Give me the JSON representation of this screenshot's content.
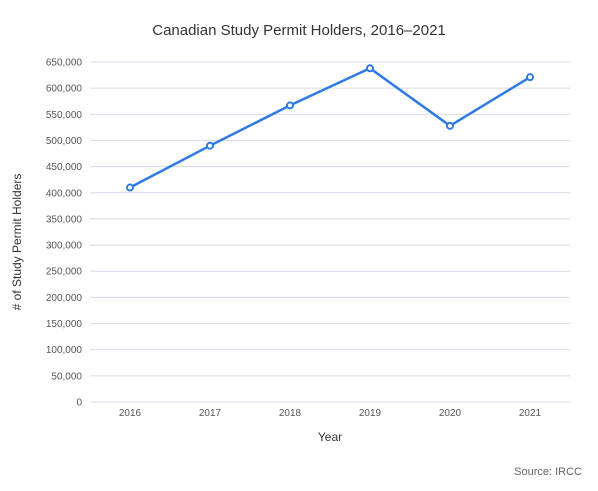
{
  "chart_data": {
    "type": "line",
    "title": "Canadian Study Permit Holders, 2016–2021",
    "xlabel": "Year",
    "ylabel": "# of Study Permit Holders",
    "categories": [
      "2016",
      "2017",
      "2018",
      "2019",
      "2020",
      "2021"
    ],
    "series": [
      {
        "values": [
          410000,
          490000,
          567000,
          638000,
          528000,
          621000
        ],
        "color": "#2f7ae5"
      }
    ],
    "ylim": [
      0,
      650000
    ],
    "yticks": [
      0,
      50000,
      100000,
      150000,
      200000,
      250000,
      300000,
      350000,
      400000,
      450000,
      500000,
      550000,
      600000,
      650000
    ],
    "ytick_labels": [
      "0",
      "50,000",
      "100,000",
      "150,000",
      "200,000",
      "250,000",
      "300,000",
      "350,000",
      "400,000",
      "450,000",
      "500,000",
      "550,000",
      "600,000",
      "650,000"
    ],
    "grid": true,
    "legend": "none",
    "gridline_color": "#d7dbe8",
    "markers": "hollow-circle"
  },
  "source": "Source: IRCC"
}
